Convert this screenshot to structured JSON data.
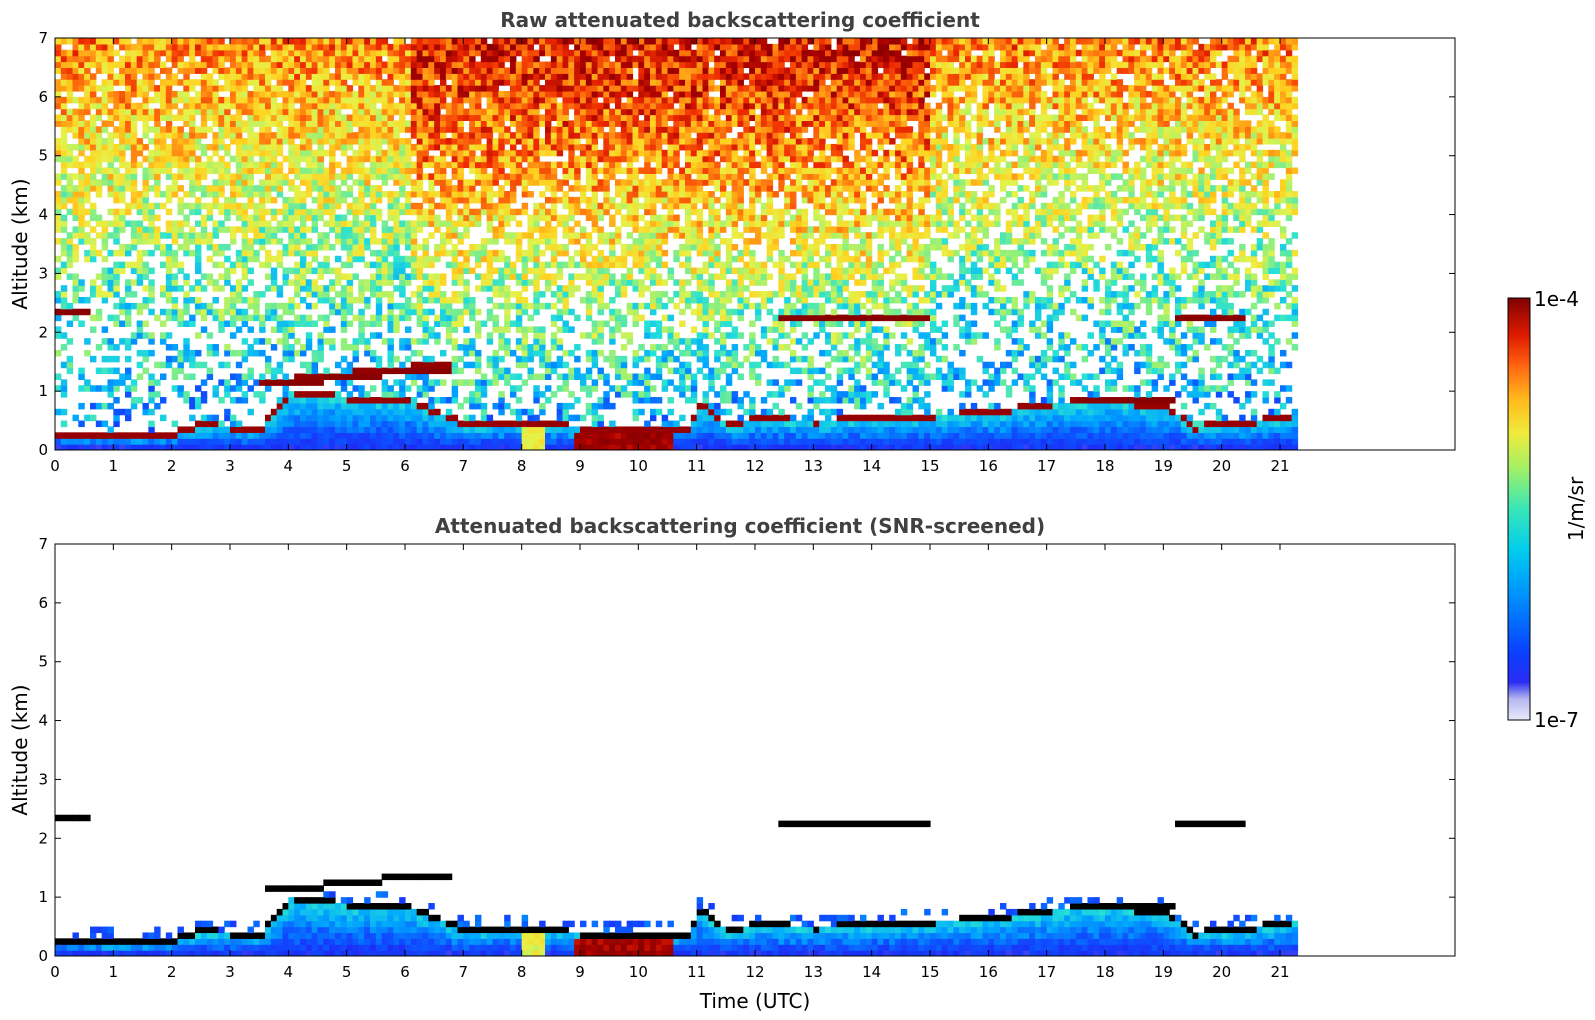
{
  "chart_data": [
    {
      "type": "heatmap",
      "title": "Raw attenuated backscattering coefficient",
      "xlabel": "",
      "ylabel": "Altitude (km)",
      "xlim": [
        0,
        24
      ],
      "ylim": [
        0,
        7
      ],
      "x_ticks": [
        "0",
        "1",
        "2",
        "3",
        "4",
        "5",
        "6",
        "7",
        "8",
        "9",
        "10",
        "11",
        "12",
        "13",
        "14",
        "15",
        "16",
        "17",
        "18",
        "19",
        "20",
        "21"
      ],
      "y_ticks": [
        "0",
        "1",
        "2",
        "3",
        "4",
        "5",
        "6",
        "7"
      ],
      "data_end_time": 21.3,
      "screened": false,
      "features": [
        {
          "kind": "boundary_layer",
          "time": [
            0,
            0.5,
            1,
            1.5,
            2,
            2.5,
            3,
            3.5,
            4,
            5,
            6,
            7,
            8,
            9,
            10,
            10.8,
            11,
            11.5,
            12,
            13,
            14,
            15,
            16,
            17,
            18,
            19,
            19.5,
            20,
            21,
            21.3
          ],
          "top_km": [
            0.2,
            0.18,
            0.15,
            0.15,
            0.2,
            0.35,
            0.3,
            0.3,
            0.9,
            0.8,
            0.75,
            0.35,
            0.4,
            0.3,
            0.3,
            0.3,
            0.7,
            0.35,
            0.45,
            0.4,
            0.45,
            0.5,
            0.55,
            0.7,
            0.75,
            0.65,
            0.3,
            0.35,
            0.45,
            0.55
          ]
        },
        {
          "kind": "aerosol_layer",
          "time": [
            3.5,
            4,
            5,
            6,
            6.8
          ],
          "alt_km": [
            1.1,
            1.15,
            1.25,
            1.35,
            1.4
          ]
        },
        {
          "kind": "cloud",
          "time": [
            12.4,
            14.9
          ],
          "alt_km": 2.25
        },
        {
          "kind": "cloud",
          "time": [
            0,
            0.5
          ],
          "alt_km": 2.35
        },
        {
          "kind": "cloud",
          "time": [
            19.2,
            20.4
          ],
          "alt_km": 2.3
        },
        {
          "kind": "cloud",
          "time": [
            17.5,
            19.2
          ],
          "alt_km": 0.85
        }
      ]
    },
    {
      "type": "heatmap",
      "title": "Attenuated backscattering coefficient (SNR-screened)",
      "xlabel": "Time (UTC)",
      "ylabel": "Altitude (km)",
      "xlim": [
        0,
        24
      ],
      "ylim": [
        0,
        7
      ],
      "x_ticks": [
        "0",
        "1",
        "2",
        "3",
        "4",
        "5",
        "6",
        "7",
        "8",
        "9",
        "10",
        "11",
        "12",
        "13",
        "14",
        "15",
        "16",
        "17",
        "18",
        "19",
        "20",
        "21"
      ],
      "y_ticks": [
        "0",
        "1",
        "2",
        "3",
        "4",
        "5",
        "6",
        "7"
      ],
      "data_end_time": 21.3,
      "screened": true
    }
  ],
  "colorbar": {
    "label": "1/m/sr",
    "max_label": "1e-4",
    "min_label": "1e-7",
    "scale": "log",
    "colormap": [
      "#e6e6f7",
      "#aeb0f0",
      "#1d2bf6",
      "#0d52ff",
      "#00a6ff",
      "#25e0d6",
      "#8ef07c",
      "#e5f24a",
      "#ffd321",
      "#ff7d0f",
      "#ee2a00",
      "#a70000",
      "#800000"
    ]
  }
}
